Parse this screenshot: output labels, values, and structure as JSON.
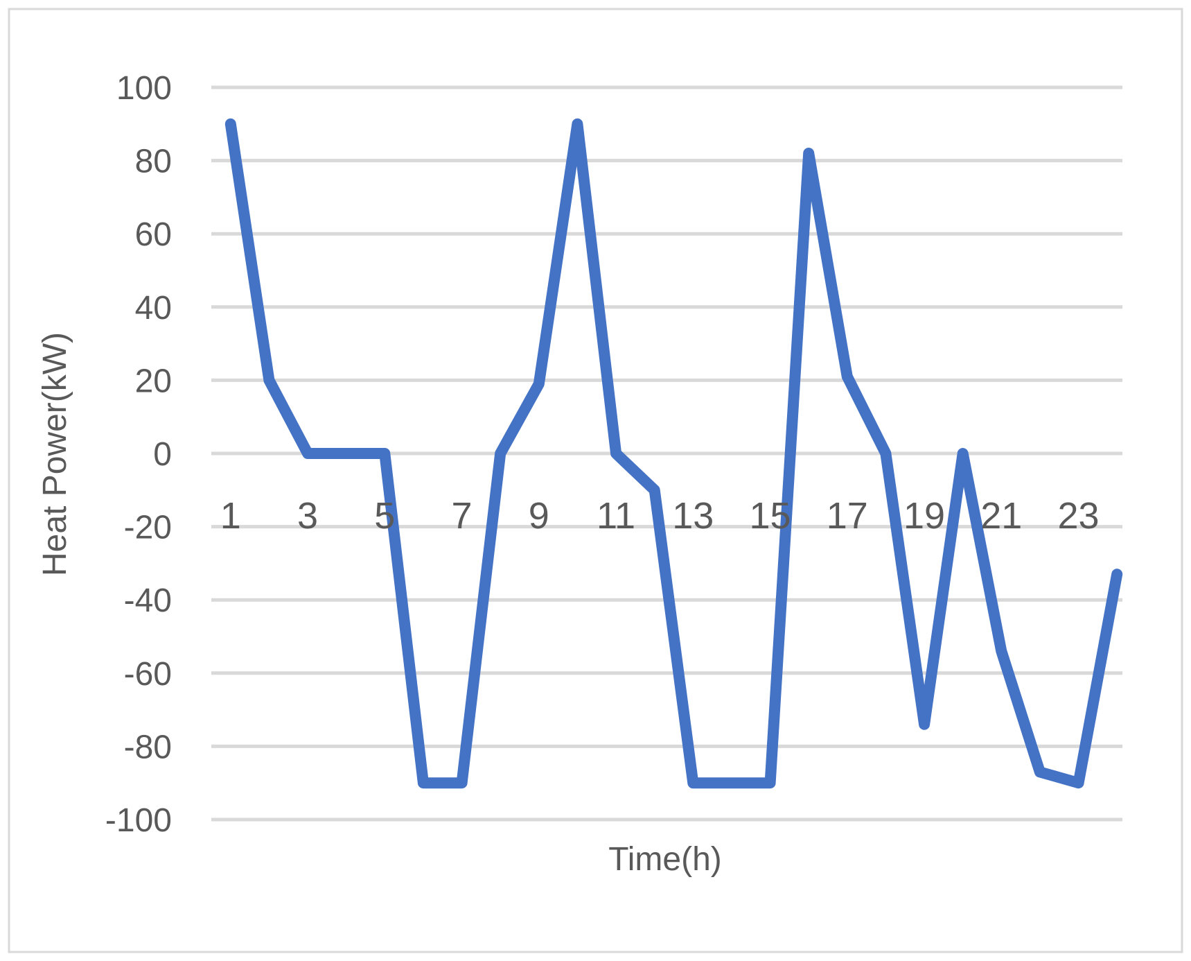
{
  "chart_data": {
    "type": "line",
    "title": "",
    "xlabel": "Time(h)",
    "ylabel": "Heat Power(kW)",
    "x": [
      1,
      2,
      3,
      4,
      5,
      6,
      7,
      8,
      9,
      10,
      11,
      12,
      13,
      14,
      15,
      16,
      17,
      18,
      19,
      20,
      21,
      22,
      23,
      24
    ],
    "x_tick_labels": [
      "1",
      "3",
      "5",
      "7",
      "9",
      "11",
      "13",
      "15",
      "17",
      "19",
      "21",
      "23"
    ],
    "y_ticks": [
      100,
      80,
      60,
      40,
      20,
      0,
      -20,
      -40,
      -60,
      -80,
      -100
    ],
    "ylim": [
      -100,
      100
    ],
    "grid": true,
    "legend": "none",
    "series": [
      {
        "color": "#4472C4",
        "values": [
          90,
          20,
          0,
          0,
          0,
          -90,
          -90,
          0,
          19,
          90,
          0,
          -10,
          -90,
          -90,
          -90,
          82,
          21,
          0,
          -74,
          0,
          -54,
          -87,
          -90,
          -33
        ]
      }
    ]
  }
}
